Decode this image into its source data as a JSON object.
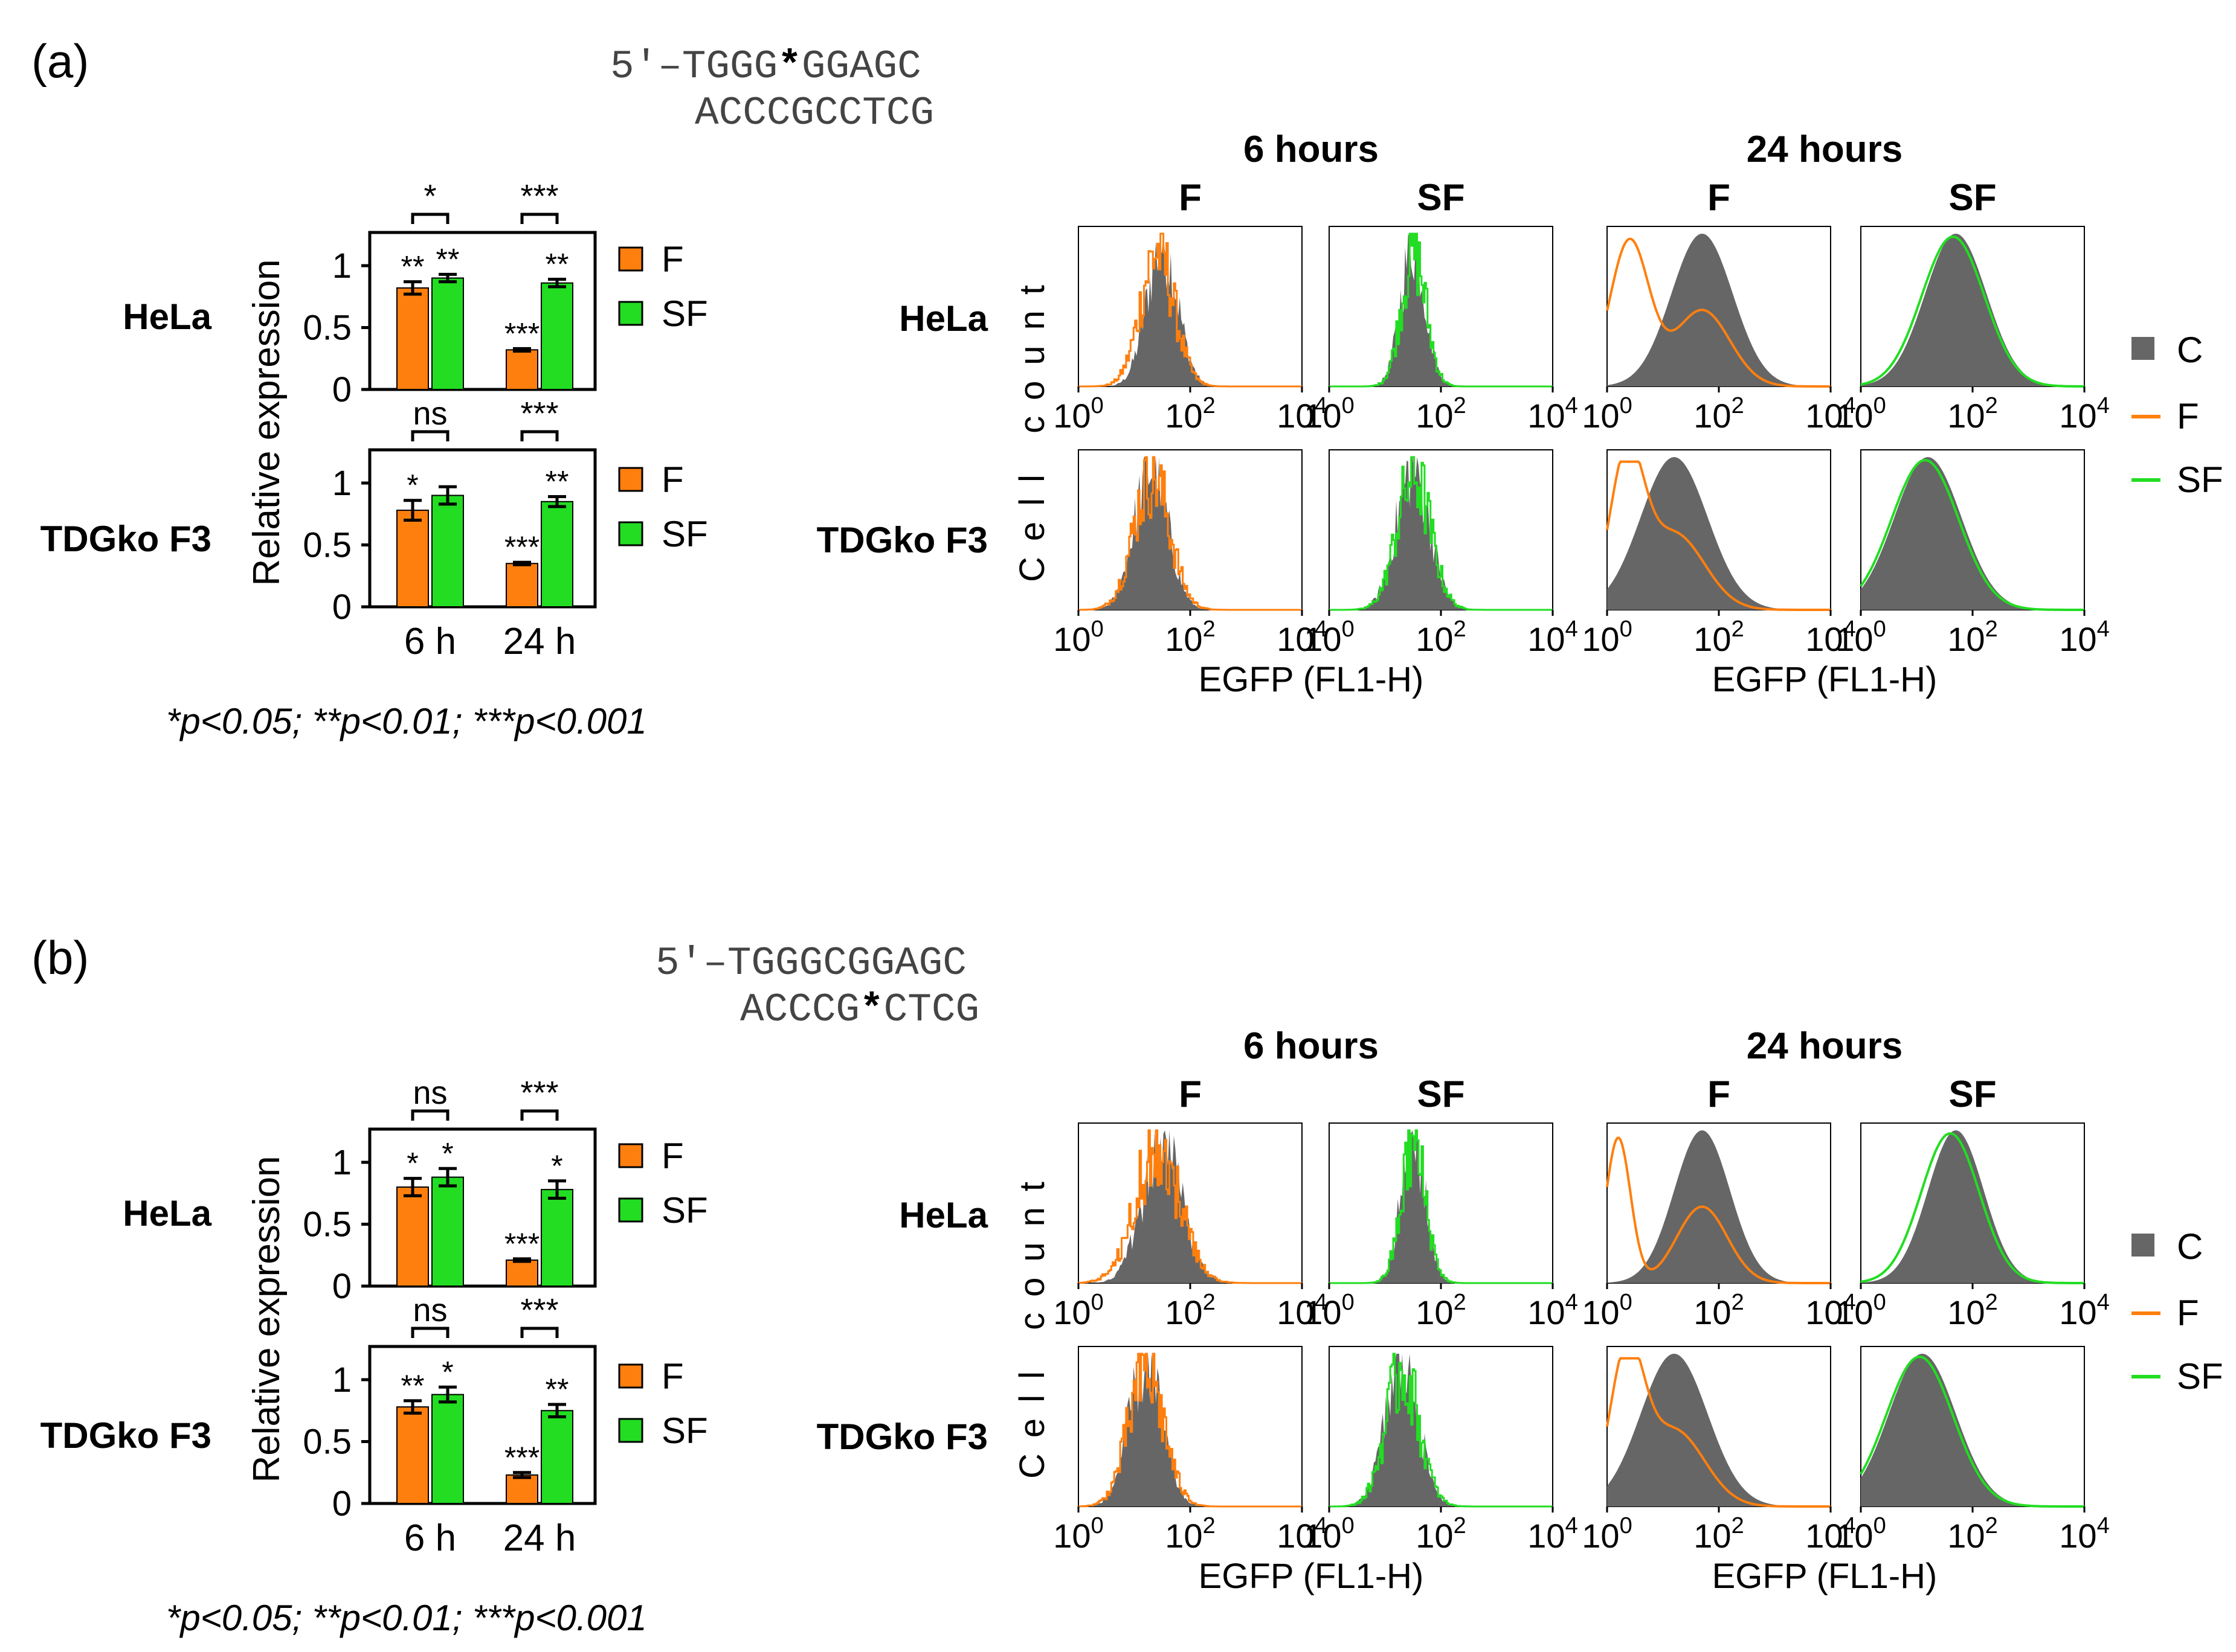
{
  "colors": {
    "F": "#ff7f0e",
    "SF": "#22dd22",
    "C": "#666666",
    "axis": "#000000"
  },
  "legend_bar": {
    "F": "F",
    "SF": "SF"
  },
  "legend_hist": {
    "C": "C",
    "F": "F",
    "SF": "SF"
  },
  "footnote": "*p<0.05; **p<0.01; ***p<0.001",
  "axis": {
    "bar_ylabel": "Relative expression",
    "hist_ylabel": "Cell count",
    "hist_xlabel": "EGFP (FL1-H)",
    "bar_yticks": [
      "0",
      "0.5",
      "1"
    ],
    "hist_xtick_base": "10",
    "hist_xtick_exps": [
      "0",
      "2",
      "4"
    ]
  },
  "panels": [
    {
      "label": "(a)",
      "seq_top_prefix": "5′–TGGG",
      "seq_top_mark": "*",
      "seq_top_suffix": "GGAGC",
      "seq_bottom_prefix": "ACCCGCCTCG",
      "seq_bottom_mark": "",
      "seq_bottom_suffix": "",
      "time_headers": [
        "6 hours",
        "24 hours"
      ],
      "condition_headers": [
        "F",
        "SF",
        "F",
        "SF"
      ]
    },
    {
      "label": "(b)",
      "seq_top_prefix": "5′–TGGGCGGAGC",
      "seq_top_mark": "",
      "seq_top_suffix": "",
      "seq_bottom_prefix": "ACCCG",
      "seq_bottom_mark": "*",
      "seq_bottom_suffix": "CTCG",
      "time_headers": [
        "6 hours",
        "24 hours"
      ],
      "condition_headers": [
        "F",
        "SF",
        "F",
        "SF"
      ]
    }
  ],
  "chart_data": [
    {
      "type": "bar",
      "panel": "(a)",
      "cell_line": "HeLa",
      "categories": [
        "6 h",
        "24 h"
      ],
      "ylabel": "Relative expression",
      "ylim": [
        0,
        1.3
      ],
      "series": [
        {
          "name": "F",
          "values": [
            0.82,
            0.32
          ],
          "errors": [
            0.05,
            0.01
          ],
          "sig": [
            "**",
            "***"
          ]
        },
        {
          "name": "SF",
          "values": [
            0.9,
            0.86
          ],
          "errors": [
            0.03,
            0.03
          ],
          "sig": [
            "**",
            "**"
          ]
        }
      ],
      "comparisons": [
        "*",
        "***"
      ]
    },
    {
      "type": "bar",
      "panel": "(a)",
      "cell_line": "TDGko F3",
      "categories": [
        "6 h",
        "24 h"
      ],
      "ylabel": "Relative expression",
      "ylim": [
        0,
        1.3
      ],
      "series": [
        {
          "name": "F",
          "values": [
            0.78,
            0.35
          ],
          "errors": [
            0.08,
            0.01
          ],
          "sig": [
            "*",
            "***"
          ]
        },
        {
          "name": "SF",
          "values": [
            0.9,
            0.85
          ],
          "errors": [
            0.07,
            0.04
          ],
          "sig": [
            "",
            "**"
          ]
        }
      ],
      "comparisons": [
        "ns",
        "***"
      ]
    },
    {
      "type": "bar",
      "panel": "(b)",
      "cell_line": "HeLa",
      "categories": [
        "6 h",
        "24 h"
      ],
      "ylabel": "Relative expression",
      "ylim": [
        0,
        1.3
      ],
      "series": [
        {
          "name": "F",
          "values": [
            0.8,
            0.21
          ],
          "errors": [
            0.07,
            0.01
          ],
          "sig": [
            "*",
            "***"
          ]
        },
        {
          "name": "SF",
          "values": [
            0.88,
            0.78
          ],
          "errors": [
            0.07,
            0.07
          ],
          "sig": [
            "*",
            "*"
          ]
        }
      ],
      "comparisons": [
        "ns",
        "***"
      ]
    },
    {
      "type": "bar",
      "panel": "(b)",
      "cell_line": "TDGko F3",
      "categories": [
        "6 h",
        "24 h"
      ],
      "ylabel": "Relative expression",
      "ylim": [
        0,
        1.3
      ],
      "series": [
        {
          "name": "F",
          "values": [
            0.78,
            0.23
          ],
          "errors": [
            0.05,
            0.02
          ],
          "sig": [
            "**",
            "***"
          ]
        },
        {
          "name": "SF",
          "values": [
            0.88,
            0.75
          ],
          "errors": [
            0.06,
            0.05
          ],
          "sig": [
            "*",
            "**"
          ]
        }
      ],
      "comparisons": [
        "ns",
        "***"
      ]
    },
    {
      "type": "histogram",
      "panel": "(a)",
      "xlabel": "EGFP (FL1-H)",
      "ylabel": "Cell count",
      "xscale": "log10",
      "xlim_log10": [
        0,
        4
      ],
      "plots": [
        {
          "cell_line": "HeLa",
          "time": "6 hours",
          "condition": "F",
          "control_peak": 1.5,
          "control_width": 0.28,
          "sample_peak": 1.4,
          "sample_width": 0.3,
          "sample_shape": "single",
          "noisy": true
        },
        {
          "cell_line": "HeLa",
          "time": "6 hours",
          "condition": "SF",
          "control_peak": 1.5,
          "control_width": 0.22,
          "sample_peak": 1.5,
          "sample_width": 0.22,
          "sample_shape": "single",
          "noisy": true
        },
        {
          "cell_line": "HeLa",
          "time": "24 hours",
          "condition": "F",
          "control_peak": 1.7,
          "control_width": 0.55,
          "sample_peak": 0.4,
          "sample_width": 0.35,
          "sample_shape": "shifted",
          "noisy": false
        },
        {
          "cell_line": "HeLa",
          "time": "24 hours",
          "condition": "SF",
          "control_peak": 1.7,
          "control_width": 0.55,
          "sample_peak": 1.65,
          "sample_width": 0.56,
          "sample_shape": "single",
          "noisy": false
        },
        {
          "cell_line": "TDGko F3",
          "time": "6 hours",
          "condition": "F",
          "control_peak": 1.3,
          "control_width": 0.3,
          "sample_peak": 1.3,
          "sample_width": 0.32,
          "sample_shape": "single",
          "noisy": true
        },
        {
          "cell_line": "TDGko F3",
          "time": "6 hours",
          "condition": "SF",
          "control_peak": 1.5,
          "control_width": 0.3,
          "sample_peak": 1.5,
          "sample_width": 0.3,
          "sample_shape": "single",
          "noisy": true
        },
        {
          "cell_line": "TDGko F3",
          "time": "24 hours",
          "condition": "F",
          "control_peak": 1.2,
          "control_width": 0.6,
          "sample_peak": 0.35,
          "sample_width": 0.3,
          "sample_shape": "shifted",
          "noisy": false
        },
        {
          "cell_line": "TDGko F3",
          "time": "24 hours",
          "condition": "SF",
          "control_peak": 1.2,
          "control_width": 0.6,
          "sample_peak": 1.15,
          "sample_width": 0.6,
          "sample_shape": "single",
          "noisy": false
        }
      ]
    },
    {
      "type": "histogram",
      "panel": "(b)",
      "xlabel": "EGFP (FL1-H)",
      "ylabel": "Cell count",
      "xscale": "log10",
      "xlim_log10": [
        0,
        4
      ],
      "plots": [
        {
          "cell_line": "HeLa",
          "time": "6 hours",
          "condition": "F",
          "control_peak": 1.5,
          "control_width": 0.35,
          "sample_peak": 1.4,
          "sample_width": 0.4,
          "sample_shape": "single",
          "noisy": true
        },
        {
          "cell_line": "HeLa",
          "time": "6 hours",
          "condition": "SF",
          "control_peak": 1.5,
          "control_width": 0.22,
          "sample_peak": 1.5,
          "sample_width": 0.22,
          "sample_shape": "single",
          "noisy": true
        },
        {
          "cell_line": "HeLa",
          "time": "24 hours",
          "condition": "F",
          "control_peak": 1.7,
          "control_width": 0.5,
          "sample_peak": 0.2,
          "sample_width": 0.22,
          "sample_shape": "shifted",
          "noisy": false
        },
        {
          "cell_line": "HeLa",
          "time": "24 hours",
          "condition": "SF",
          "control_peak": 1.7,
          "control_width": 0.5,
          "sample_peak": 1.6,
          "sample_width": 0.52,
          "sample_shape": "single",
          "noisy": false
        },
        {
          "cell_line": "TDGko F3",
          "time": "6 hours",
          "condition": "F",
          "control_peak": 1.2,
          "control_width": 0.3,
          "sample_peak": 1.2,
          "sample_width": 0.32,
          "sample_shape": "single",
          "noisy": true
        },
        {
          "cell_line": "TDGko F3",
          "time": "6 hours",
          "condition": "SF",
          "control_peak": 1.3,
          "control_width": 0.3,
          "sample_peak": 1.3,
          "sample_width": 0.3,
          "sample_shape": "single",
          "noisy": true
        },
        {
          "cell_line": "TDGko F3",
          "time": "24 hours",
          "condition": "F",
          "control_peak": 1.2,
          "control_width": 0.6,
          "sample_peak": 0.35,
          "sample_width": 0.3,
          "sample_shape": "shifted",
          "noisy": false
        },
        {
          "cell_line": "TDGko F3",
          "time": "24 hours",
          "condition": "SF",
          "control_peak": 1.1,
          "control_width": 0.6,
          "sample_peak": 1.05,
          "sample_width": 0.6,
          "sample_shape": "single",
          "noisy": false
        }
      ]
    }
  ]
}
